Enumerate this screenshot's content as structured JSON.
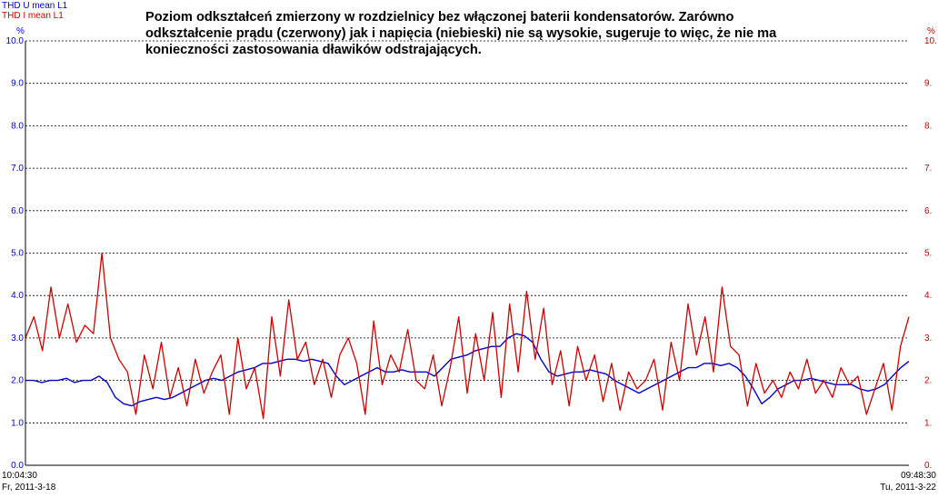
{
  "chart_data": {
    "type": "line",
    "title": "Poziom odkształceń zmierzony w rozdzielnicy bez włączonej baterii kondensatorów. Zarówno odkształcenie prądu (czerwony) jak i napięcia (niebieski) nie są wysokie, sugeruje to więc, że nie ma konieczności zastosowania dławików odstrajających.",
    "ylabel": "%",
    "ylabel_right": "%",
    "ylim": [
      0,
      10
    ],
    "yticks": [
      "0.0",
      "1.0",
      "2.0",
      "3.0",
      "4.0",
      "5.0",
      "6.0",
      "7.0",
      "8.0",
      "9.0",
      "10.0"
    ],
    "yticks_right": [
      "0.",
      "1.",
      "2.",
      "3.",
      "4.",
      "5.",
      "6.",
      "7.",
      "8.",
      "9.",
      "10."
    ],
    "grid": true,
    "legend_position": "top-left",
    "x_start": {
      "time": "10:04:30",
      "date": "Fr, 2011-3-18"
    },
    "x_end": {
      "time": "09:48:30",
      "date": "Tu, 2011-3-22"
    },
    "series": [
      {
        "name": "THD U mean L1",
        "color": "#0000cc",
        "values": [
          2.0,
          2.0,
          1.95,
          2.0,
          2.0,
          2.05,
          1.95,
          2.0,
          2.0,
          2.1,
          1.95,
          1.6,
          1.45,
          1.4,
          1.5,
          1.55,
          1.6,
          1.55,
          1.6,
          1.7,
          1.8,
          1.9,
          2.0,
          2.05,
          2.0,
          2.1,
          2.2,
          2.25,
          2.3,
          2.4,
          2.4,
          2.45,
          2.5,
          2.5,
          2.45,
          2.5,
          2.45,
          2.4,
          2.1,
          1.9,
          2.0,
          2.1,
          2.2,
          2.3,
          2.2,
          2.2,
          2.25,
          2.2,
          2.2,
          2.2,
          2.1,
          2.3,
          2.5,
          2.55,
          2.6,
          2.7,
          2.75,
          2.8,
          2.8,
          3.0,
          3.1,
          3.05,
          2.9,
          2.5,
          2.2,
          2.1,
          2.15,
          2.2,
          2.2,
          2.25,
          2.2,
          2.15,
          2.0,
          1.9,
          1.8,
          1.7,
          1.8,
          1.9,
          2.0,
          2.1,
          2.2,
          2.3,
          2.3,
          2.4,
          2.4,
          2.35,
          2.4,
          2.3,
          2.1,
          1.8,
          1.45,
          1.6,
          1.8,
          1.9,
          2.0,
          2.0,
          2.05,
          2.0,
          1.95,
          1.9,
          1.9,
          1.9,
          1.8,
          1.75,
          1.8,
          1.9,
          2.1,
          2.3,
          2.45
        ]
      },
      {
        "name": "THD I mean L1",
        "color": "#cc0000",
        "values": [
          3.0,
          3.5,
          2.7,
          4.2,
          3.0,
          3.8,
          2.9,
          3.3,
          3.1,
          5.0,
          3.0,
          2.5,
          2.2,
          1.2,
          2.6,
          1.8,
          2.9,
          1.6,
          2.3,
          1.4,
          2.5,
          1.7,
          2.2,
          2.6,
          1.2,
          3.0,
          1.8,
          2.3,
          1.1,
          3.5,
          2.1,
          3.9,
          2.5,
          2.9,
          1.9,
          2.5,
          1.6,
          2.6,
          3.0,
          2.4,
          1.2,
          3.4,
          1.9,
          2.6,
          2.2,
          3.2,
          2.0,
          1.8,
          2.6,
          1.4,
          2.3,
          3.5,
          1.7,
          3.1,
          2.0,
          3.6,
          1.6,
          3.8,
          2.2,
          4.1,
          2.5,
          3.7,
          1.9,
          2.7,
          1.4,
          2.8,
          2.0,
          2.6,
          1.5,
          2.4,
          1.3,
          2.2,
          1.8,
          2.0,
          2.5,
          1.3,
          2.9,
          2.0,
          3.8,
          2.6,
          3.5,
          2.2,
          4.2,
          2.8,
          2.6,
          1.4,
          2.4,
          1.7,
          2.0,
          1.6,
          2.2,
          1.8,
          2.5,
          1.7,
          2.0,
          1.6,
          2.3,
          1.9,
          2.1,
          1.2,
          1.8,
          2.4,
          1.3,
          2.8,
          3.5
        ]
      }
    ]
  }
}
